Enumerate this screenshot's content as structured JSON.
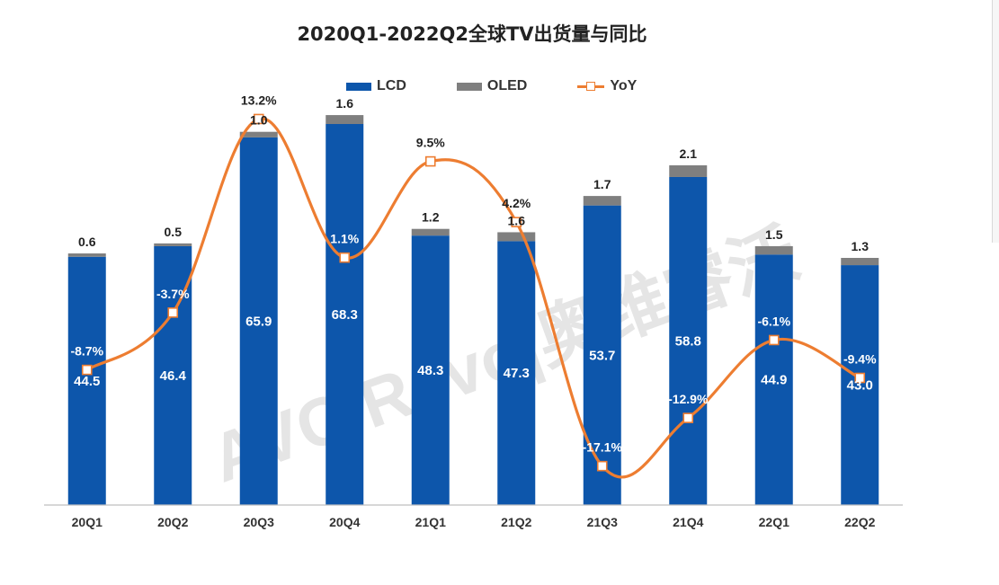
{
  "title": "2020Q1-2022Q2全球TV出货量与同比",
  "legend": {
    "lcd": "LCD",
    "oled": "OLED",
    "yoy": "YoY"
  },
  "watermark": "AVC Revo|奥维睿沃",
  "colors": {
    "lcd": "#0D56AB",
    "oled": "#7F7F7F",
    "yoy": "#ED7D31",
    "axis": "#BFBFBF"
  },
  "chart_data": {
    "type": "bar",
    "stacked": true,
    "title": "2020Q1-2022Q2全球TV出货量与同比",
    "categories": [
      "20Q1",
      "20Q2",
      "20Q3",
      "20Q4",
      "21Q1",
      "21Q2",
      "21Q3",
      "21Q4",
      "22Q1",
      "22Q2"
    ],
    "series": [
      {
        "name": "LCD",
        "type": "bar",
        "values": [
          44.5,
          46.4,
          65.9,
          68.3,
          48.3,
          47.3,
          53.7,
          58.8,
          44.9,
          43.0
        ],
        "labels": [
          "44.5",
          "46.4",
          "65.9",
          "68.3",
          "48.3",
          "47.3",
          "53.7",
          "58.8",
          "44.9",
          "43.0"
        ]
      },
      {
        "name": "OLED",
        "type": "bar",
        "values": [
          0.6,
          0.5,
          1.0,
          1.6,
          1.2,
          1.6,
          1.7,
          2.1,
          1.5,
          1.3
        ],
        "labels": [
          "0.6",
          "0.5",
          "1.0",
          "1.6",
          "1.2",
          "1.6",
          "1.7",
          "2.1",
          "1.5",
          "1.3"
        ]
      },
      {
        "name": "YoY",
        "type": "line",
        "axis": "secondary",
        "smooth": true,
        "values": [
          -8.7,
          -3.7,
          13.2,
          1.1,
          9.5,
          4.2,
          -17.1,
          -12.9,
          -6.1,
          -9.4
        ],
        "labels": [
          "-8.7%",
          "-3.7%",
          "13.2%",
          "1.1%",
          "9.5%",
          "4.2%",
          "-17.1%",
          "-12.9%",
          "-6.1%",
          "-9.4%"
        ]
      }
    ],
    "ylim": [
      0,
      77
    ],
    "y2lim": [
      -20.5,
      17
    ],
    "grid": false,
    "legend_position": "top"
  }
}
